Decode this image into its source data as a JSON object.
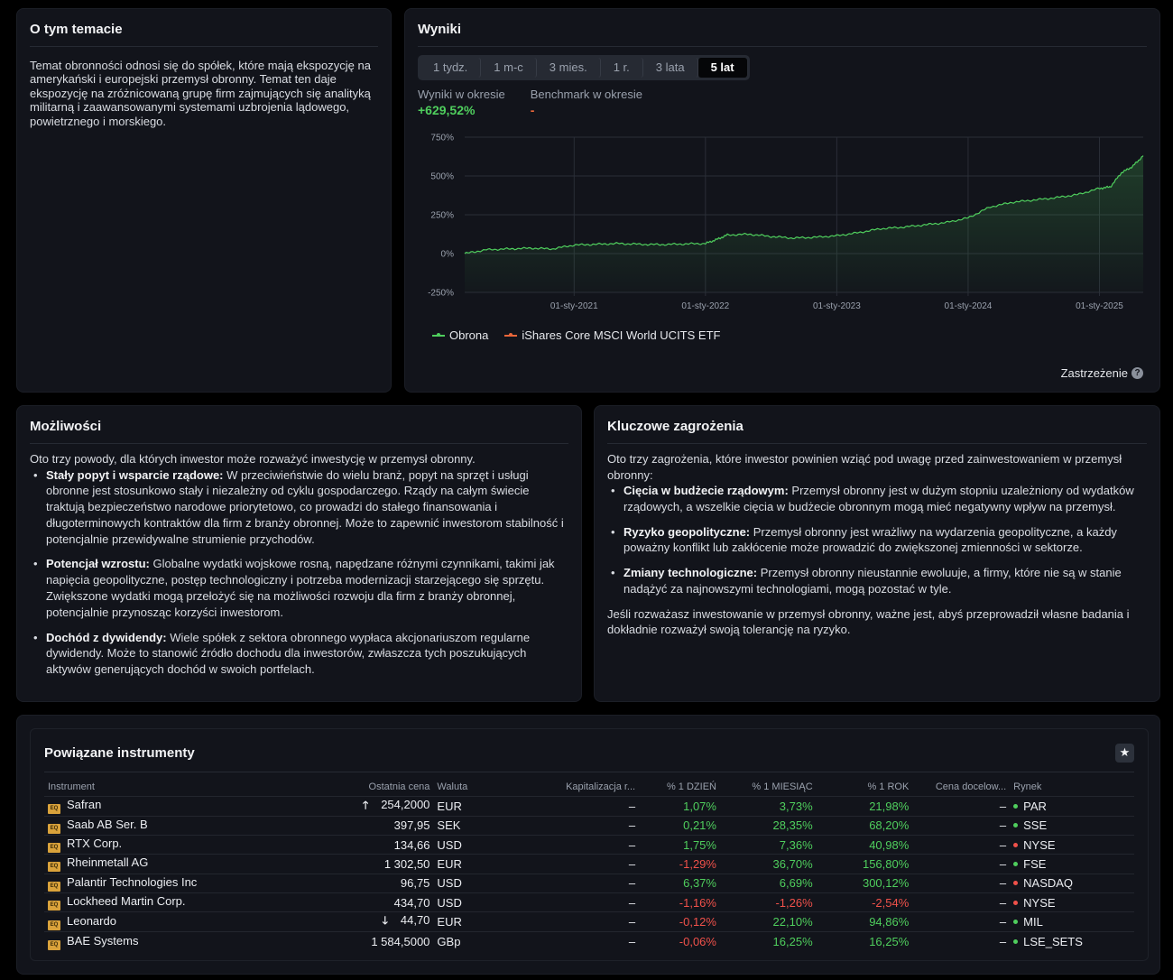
{
  "about": {
    "title": "O tym temacie",
    "text": "Temat obronności odnosi się do spółek, które mają ekspozycję na amerykański i europejski przemysł obronny. Temat ten daje ekspozycję na zróżnicowaną grupę firm zajmujących się analityką militarną i zaawansowanymi systemami uzbrojenia lądowego, powietrznego i morskiego."
  },
  "results": {
    "title": "Wyniki",
    "tabs": [
      "1 tydz.",
      "1 m-c",
      "3 mies.",
      "1 r.",
      "3 lata",
      "5 lat"
    ],
    "active_tab": "5 lat",
    "period_label": "Wyniki w okresie",
    "period_value": "+629,52%",
    "benchmark_label": "Benchmark w okresie",
    "benchmark_value": "-",
    "legend": [
      {
        "name": "Obrona",
        "color": "#4fce5d"
      },
      {
        "name": "iShares Core MSCI World UCITS ETF",
        "color": "#e8663a"
      }
    ],
    "disclaimer": "Zastrzeżenie",
    "help_icon": "?"
  },
  "chart_data": {
    "type": "area",
    "ylim": [
      -250,
      750
    ],
    "y_ticks": [
      "750%",
      "500%",
      "250%",
      "0%",
      "-250%"
    ],
    "y_tick_values": [
      750,
      500,
      250,
      0,
      -250
    ],
    "x_ticks": [
      "01-sty-2021",
      "01-sty-2022",
      "01-sty-2023",
      "01-sty-2024",
      "01-sty-2025"
    ],
    "x_range": [
      "2020-03",
      "2025-05"
    ],
    "series": [
      {
        "name": "Obrona",
        "color": "#4fce5d",
        "x": [
          "2020-03",
          "2020-05",
          "2020-07",
          "2020-09",
          "2020-11",
          "2021-01",
          "2021-03",
          "2021-05",
          "2021-07",
          "2021-09",
          "2021-11",
          "2022-01",
          "2022-02",
          "2022-03",
          "2022-05",
          "2022-07",
          "2022-09",
          "2022-11",
          "2023-01",
          "2023-03",
          "2023-05",
          "2023-07",
          "2023-09",
          "2023-11",
          "2024-01",
          "2024-03",
          "2024-05",
          "2024-07",
          "2024-09",
          "2024-11",
          "2025-01",
          "2025-02",
          "2025-03",
          "2025-04",
          "2025-05"
        ],
        "values": [
          0,
          25,
          30,
          35,
          30,
          55,
          60,
          65,
          60,
          58,
          62,
          65,
          90,
          120,
          125,
          110,
          100,
          105,
          115,
          135,
          160,
          170,
          185,
          200,
          230,
          300,
          330,
          345,
          360,
          380,
          420,
          430,
          520,
          560,
          630
        ]
      },
      {
        "name": "iShares Core MSCI World UCITS ETF",
        "color": "#e8663a",
        "x": [],
        "values": []
      }
    ]
  },
  "opportunities": {
    "title": "Możliwości",
    "intro": "Oto trzy powody, dla których inwestor może rozważyć inwestycję w przemysł obronny.",
    "items": [
      {
        "bold": "Stały popyt i wsparcie rządowe:",
        "text": " W przeciwieństwie do wielu branż, popyt na sprzęt i usługi obronne jest stosunkowo stały i niezależny od cyklu gospodarczego. Rządy na całym świecie traktują bezpieczeństwo narodowe priorytetowo, co prowadzi do stałego finansowania i długoterminowych kontraktów dla firm z branży obronnej. Może to zapewnić inwestorom stabilność i potencjalnie przewidywalne strumienie przychodów."
      },
      {
        "bold": "Potencjał wzrostu:",
        "text": " Globalne wydatki wojskowe rosną, napędzane różnymi czynnikami, takimi jak napięcia geopolityczne, postęp technologiczny i potrzeba modernizacji starzejącego się sprzętu. Zwiększone wydatki mogą przełożyć się na możliwości rozwoju dla firm z branży obronnej, potencjalnie przynosząc korzyści inwestorom."
      },
      {
        "bold": "Dochód z dywidendy:",
        "text": " Wiele spółek z sektora obronnego wypłaca akcjonariuszom regularne dywidendy. Może to stanowić źródło dochodu dla inwestorów, zwłaszcza tych poszukujących aktywów generujących dochód w swoich portfelach."
      }
    ]
  },
  "risks": {
    "title": "Kluczowe zagrożenia",
    "intro": "Oto trzy zagrożenia, które inwestor powinien wziąć pod uwagę przed zainwestowaniem w przemysł obronny:",
    "items": [
      {
        "bold": "Cięcia w budżecie rządowym:",
        "text": " Przemysł obronny jest w dużym stopniu uzależniony od wydatków rządowych, a wszelkie cięcia w budżecie obronnym mogą mieć negatywny wpływ na przemysł."
      },
      {
        "bold": "Ryzyko geopolityczne:",
        "text": " Przemysł obronny jest wrażliwy na wydarzenia geopolityczne, a każdy poważny konflikt lub zakłócenie może prowadzić do zwiększonej zmienności w sektorze."
      },
      {
        "bold": "Zmiany technologiczne:",
        "text": " Przemysł obronny nieustannie ewoluuje, a firmy, które nie są w stanie nadążyć za najnowszymi technologiami, mogą pozostać w tyle."
      }
    ],
    "closing": "Jeśli rozważasz inwestowanie w przemysł obronny, ważne jest, abyś przeprowadził własne badania i dokładnie rozważył swoją tolerancję na ryzyko."
  },
  "instruments": {
    "title": "Powiązane instrumenty",
    "star_icon": "★",
    "columns": [
      "Instrument",
      "Ostatnia cena",
      "Waluta",
      "Kapitalizacja r...",
      "% 1 DZIEŃ",
      "% 1 MIESIĄC",
      "% 1 ROK",
      "Cena docelow...",
      "Rynek"
    ],
    "badge": "EQ",
    "rows": [
      {
        "name": "Safran",
        "arrow": "🡑",
        "price": "254,2000",
        "currency": "EUR",
        "cap": "–",
        "d1": "1,07%",
        "d1_sign": "pos",
        "m1": "3,73%",
        "m1_sign": "pos",
        "y1": "21,98%",
        "y1_sign": "pos",
        "target": "–",
        "market": "PAR",
        "market_status": "open"
      },
      {
        "name": "Saab AB Ser. B",
        "arrow": "",
        "price": "397,95",
        "currency": "SEK",
        "cap": "–",
        "d1": "0,21%",
        "d1_sign": "pos",
        "m1": "28,35%",
        "m1_sign": "pos",
        "y1": "68,20%",
        "y1_sign": "pos",
        "target": "–",
        "market": "SSE",
        "market_status": "open"
      },
      {
        "name": "RTX Corp.",
        "arrow": "",
        "price": "134,66",
        "currency": "USD",
        "cap": "–",
        "d1": "1,75%",
        "d1_sign": "pos",
        "m1": "7,36%",
        "m1_sign": "pos",
        "y1": "40,98%",
        "y1_sign": "pos",
        "target": "–",
        "market": "NYSE",
        "market_status": "closed"
      },
      {
        "name": "Rheinmetall AG",
        "arrow": "",
        "price": "1 302,50",
        "currency": "EUR",
        "cap": "–",
        "d1": "-1,29%",
        "d1_sign": "neg",
        "m1": "36,70%",
        "m1_sign": "pos",
        "y1": "156,80%",
        "y1_sign": "pos",
        "target": "–",
        "market": "FSE",
        "market_status": "open"
      },
      {
        "name": "Palantir Technologies Inc",
        "arrow": "",
        "price": "96,75",
        "currency": "USD",
        "cap": "–",
        "d1": "6,37%",
        "d1_sign": "pos",
        "m1": "6,69%",
        "m1_sign": "pos",
        "y1": "300,12%",
        "y1_sign": "pos",
        "target": "–",
        "market": "NASDAQ",
        "market_status": "closed"
      },
      {
        "name": "Lockheed Martin Corp.",
        "arrow": "",
        "price": "434,70",
        "currency": "USD",
        "cap": "–",
        "d1": "-1,16%",
        "d1_sign": "neg",
        "m1": "-1,26%",
        "m1_sign": "neg",
        "y1": "-2,54%",
        "y1_sign": "neg",
        "target": "–",
        "market": "NYSE",
        "market_status": "closed"
      },
      {
        "name": "Leonardo",
        "arrow": "🡓",
        "price": "44,70",
        "currency": "EUR",
        "cap": "–",
        "d1": "-0,12%",
        "d1_sign": "neg",
        "m1": "22,10%",
        "m1_sign": "pos",
        "y1": "94,86%",
        "y1_sign": "pos",
        "target": "–",
        "market": "MIL",
        "market_status": "open"
      },
      {
        "name": "BAE Systems",
        "arrow": "",
        "price": "1 584,5000",
        "currency": "GBp",
        "cap": "–",
        "d1": "-0,06%",
        "d1_sign": "neg",
        "m1": "16,25%",
        "m1_sign": "pos",
        "y1": "16,25%",
        "y1_sign": "pos",
        "target": "–",
        "market": "LSE_SETS",
        "market_status": "open"
      }
    ],
    "status_colors": {
      "open": "#4fce5d",
      "closed": "#f0514a"
    }
  }
}
